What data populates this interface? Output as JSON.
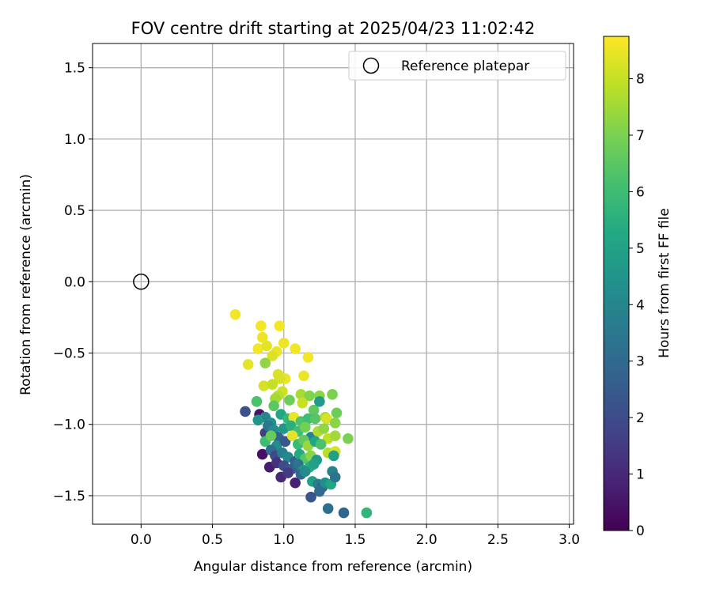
{
  "chart_data": {
    "type": "scatter",
    "title": "FOV centre drift starting at 2025/04/23 11:02:42",
    "xlabel": "Angular distance from reference (arcmin)",
    "ylabel": "Rotation from reference (arcmin)",
    "xlim": [
      -0.34,
      3.03
    ],
    "ylim": [
      -1.7,
      1.67
    ],
    "xticks": [
      0.0,
      0.5,
      1.0,
      1.5,
      2.0,
      2.5,
      3.0
    ],
    "xtick_labels": [
      "0.0",
      "0.5",
      "1.0",
      "1.5",
      "2.0",
      "2.5",
      "3.0"
    ],
    "yticks": [
      -1.5,
      -1.0,
      -0.5,
      0.0,
      0.5,
      1.0,
      1.5
    ],
    "ytick_labels": [
      "−1.5",
      "−1.0",
      "−0.5",
      "0.0",
      "0.5",
      "1.0",
      "1.5"
    ],
    "grid": true,
    "legend": {
      "placement": "top-right",
      "entries": [
        {
          "label": "Reference platepar",
          "marker": "open-circle"
        }
      ]
    },
    "reference_point": {
      "x": 0.0,
      "y": 0.0
    },
    "colorbar": {
      "label": "Hours from first FF file",
      "colormap": "viridis",
      "range": [
        0,
        8.75
      ],
      "ticks": [
        0,
        1,
        2,
        3,
        4,
        5,
        6,
        7,
        8
      ],
      "tick_labels": [
        "0",
        "1",
        "2",
        "3",
        "4",
        "5",
        "6",
        "7",
        "8"
      ]
    },
    "points": [
      {
        "x": 0.66,
        "y": -0.23,
        "h": 8.6
      },
      {
        "x": 0.84,
        "y": -0.31,
        "h": 8.6
      },
      {
        "x": 0.97,
        "y": -0.31,
        "h": 8.6
      },
      {
        "x": 0.85,
        "y": -0.39,
        "h": 8.5
      },
      {
        "x": 1.0,
        "y": -0.43,
        "h": 8.5
      },
      {
        "x": 0.82,
        "y": -0.47,
        "h": 8.6
      },
      {
        "x": 0.88,
        "y": -0.45,
        "h": 8.4
      },
      {
        "x": 0.95,
        "y": -0.49,
        "h": 8.5
      },
      {
        "x": 1.08,
        "y": -0.47,
        "h": 8.6
      },
      {
        "x": 0.92,
        "y": -0.52,
        "h": 8.3
      },
      {
        "x": 1.17,
        "y": -0.53,
        "h": 8.6
      },
      {
        "x": 0.75,
        "y": -0.58,
        "h": 8.4
      },
      {
        "x": 0.87,
        "y": -0.57,
        "h": 7.3
      },
      {
        "x": 0.96,
        "y": -0.65,
        "h": 8.3
      },
      {
        "x": 1.01,
        "y": -0.68,
        "h": 8.5
      },
      {
        "x": 0.97,
        "y": -0.68,
        "h": 8.2
      },
      {
        "x": 1.14,
        "y": -0.66,
        "h": 8.5
      },
      {
        "x": 0.86,
        "y": -0.73,
        "h": 8.2
      },
      {
        "x": 0.92,
        "y": -0.72,
        "h": 8.0
      },
      {
        "x": 0.99,
        "y": -0.77,
        "h": 8.1
      },
      {
        "x": 0.96,
        "y": -0.8,
        "h": 7.8
      },
      {
        "x": 0.94,
        "y": -0.82,
        "h": 7.5
      },
      {
        "x": 1.12,
        "y": -0.79,
        "h": 7.6
      },
      {
        "x": 1.18,
        "y": -0.8,
        "h": 7.1
      },
      {
        "x": 1.25,
        "y": -0.8,
        "h": 7.2
      },
      {
        "x": 1.34,
        "y": -0.79,
        "h": 7.0
      },
      {
        "x": 1.13,
        "y": -0.85,
        "h": 8.0
      },
      {
        "x": 0.81,
        "y": -0.84,
        "h": 6.2
      },
      {
        "x": 0.93,
        "y": -0.87,
        "h": 6.5
      },
      {
        "x": 1.04,
        "y": -0.83,
        "h": 6.8
      },
      {
        "x": 1.21,
        "y": -0.9,
        "h": 6.6
      },
      {
        "x": 1.25,
        "y": -0.84,
        "h": 4.8
      },
      {
        "x": 0.73,
        "y": -0.91,
        "h": 2.2
      },
      {
        "x": 0.83,
        "y": -0.93,
        "h": 0.5
      },
      {
        "x": 0.87,
        "y": -0.95,
        "h": 4.0
      },
      {
        "x": 0.82,
        "y": -0.97,
        "h": 4.5
      },
      {
        "x": 0.91,
        "y": -0.99,
        "h": 4.4
      },
      {
        "x": 0.98,
        "y": -0.93,
        "h": 5.2
      },
      {
        "x": 1.03,
        "y": -0.96,
        "h": 5.8
      },
      {
        "x": 1.07,
        "y": -0.95,
        "h": 8.5
      },
      {
        "x": 1.12,
        "y": -0.98,
        "h": 6.3
      },
      {
        "x": 1.17,
        "y": -0.96,
        "h": 6.0
      },
      {
        "x": 1.22,
        "y": -0.96,
        "h": 6.4
      },
      {
        "x": 1.29,
        "y": -0.95,
        "h": 7.6
      },
      {
        "x": 1.3,
        "y": -0.96,
        "h": 8.2
      },
      {
        "x": 1.37,
        "y": -0.92,
        "h": 6.8
      },
      {
        "x": 1.36,
        "y": -0.99,
        "h": 7.2
      },
      {
        "x": 0.87,
        "y": -1.06,
        "h": 1.6
      },
      {
        "x": 0.89,
        "y": -1.01,
        "h": 3.5
      },
      {
        "x": 0.93,
        "y": -1.04,
        "h": 4.2
      },
      {
        "x": 0.96,
        "y": -1.09,
        "h": 2.8
      },
      {
        "x": 1.0,
        "y": -1.03,
        "h": 4.6
      },
      {
        "x": 1.05,
        "y": -1.01,
        "h": 5.5
      },
      {
        "x": 1.1,
        "y": -1.05,
        "h": 6.1
      },
      {
        "x": 1.15,
        "y": -1.02,
        "h": 6.9
      },
      {
        "x": 1.19,
        "y": -1.09,
        "h": 3.9
      },
      {
        "x": 1.24,
        "y": -1.05,
        "h": 7.7
      },
      {
        "x": 1.28,
        "y": -1.03,
        "h": 7.3
      },
      {
        "x": 1.31,
        "y": -1.1,
        "h": 7.9
      },
      {
        "x": 1.36,
        "y": -1.08,
        "h": 7.5
      },
      {
        "x": 1.45,
        "y": -1.1,
        "h": 7.0
      },
      {
        "x": 0.87,
        "y": -1.12,
        "h": 6.0
      },
      {
        "x": 0.91,
        "y": -1.08,
        "h": 6.7
      },
      {
        "x": 0.95,
        "y": -1.15,
        "h": 4.3
      },
      {
        "x": 1.01,
        "y": -1.12,
        "h": 2.4
      },
      {
        "x": 1.06,
        "y": -1.08,
        "h": 8.4
      },
      {
        "x": 1.1,
        "y": -1.14,
        "h": 5.9
      },
      {
        "x": 1.14,
        "y": -1.11,
        "h": 6.6
      },
      {
        "x": 1.17,
        "y": -1.15,
        "h": 7.4
      },
      {
        "x": 1.22,
        "y": -1.12,
        "h": 5.2
      },
      {
        "x": 1.26,
        "y": -1.14,
        "h": 6.2
      },
      {
        "x": 1.31,
        "y": -1.2,
        "h": 7.8
      },
      {
        "x": 1.36,
        "y": -1.19,
        "h": 8.2
      },
      {
        "x": 1.35,
        "y": -1.22,
        "h": 4.9
      },
      {
        "x": 0.85,
        "y": -1.21,
        "h": 0.4
      },
      {
        "x": 0.91,
        "y": -1.18,
        "h": 3.2
      },
      {
        "x": 0.94,
        "y": -1.22,
        "h": 1.9
      },
      {
        "x": 0.99,
        "y": -1.2,
        "h": 3.7
      },
      {
        "x": 1.03,
        "y": -1.23,
        "h": 4.1
      },
      {
        "x": 1.08,
        "y": -1.26,
        "h": 2.7
      },
      {
        "x": 1.11,
        "y": -1.21,
        "h": 5.3
      },
      {
        "x": 1.15,
        "y": -1.24,
        "h": 6.4
      },
      {
        "x": 1.19,
        "y": -1.22,
        "h": 7.2
      },
      {
        "x": 1.23,
        "y": -1.25,
        "h": 4.7
      },
      {
        "x": 0.9,
        "y": -1.3,
        "h": 0.7
      },
      {
        "x": 0.95,
        "y": -1.27,
        "h": 1.2
      },
      {
        "x": 1.0,
        "y": -1.29,
        "h": 2.0
      },
      {
        "x": 1.06,
        "y": -1.31,
        "h": 2.6
      },
      {
        "x": 1.1,
        "y": -1.28,
        "h": 3.3
      },
      {
        "x": 1.14,
        "y": -1.32,
        "h": 4.6
      },
      {
        "x": 1.18,
        "y": -1.3,
        "h": 5.5
      },
      {
        "x": 1.21,
        "y": -1.28,
        "h": 5.0
      },
      {
        "x": 0.98,
        "y": -1.37,
        "h": 1.0
      },
      {
        "x": 1.03,
        "y": -1.34,
        "h": 1.5
      },
      {
        "x": 1.08,
        "y": -1.41,
        "h": 0.8
      },
      {
        "x": 1.12,
        "y": -1.35,
        "h": 3.0
      },
      {
        "x": 1.15,
        "y": -1.33,
        "h": 4.2
      },
      {
        "x": 1.2,
        "y": -1.4,
        "h": 4.9
      },
      {
        "x": 1.24,
        "y": -1.42,
        "h": 3.6
      },
      {
        "x": 1.27,
        "y": -1.44,
        "h": 2.8
      },
      {
        "x": 1.29,
        "y": -1.41,
        "h": 4.3
      },
      {
        "x": 1.33,
        "y": -1.42,
        "h": 5.1
      },
      {
        "x": 1.34,
        "y": -1.33,
        "h": 3.8
      },
      {
        "x": 1.36,
        "y": -1.37,
        "h": 3.4
      },
      {
        "x": 1.25,
        "y": -1.47,
        "h": 3.1
      },
      {
        "x": 1.19,
        "y": -1.51,
        "h": 2.3
      },
      {
        "x": 1.31,
        "y": -1.59,
        "h": 3.2
      },
      {
        "x": 1.42,
        "y": -1.62,
        "h": 2.9
      },
      {
        "x": 1.58,
        "y": -1.62,
        "h": 5.7
      }
    ]
  }
}
